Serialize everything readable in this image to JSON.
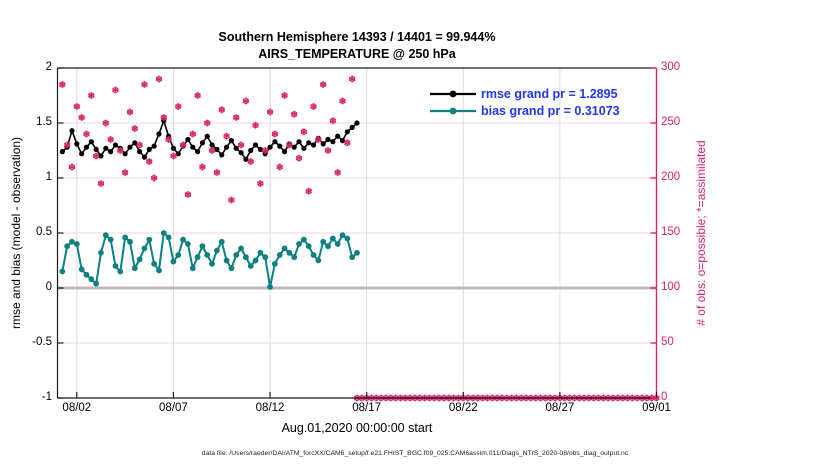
{
  "footer": {
    "data_file": "data file: /Users/raeder/DAI/ATM_forcXX/CAM6_setup/f.e21.FHIST_BGC.f09_025.CAM6assim.011/Diags_NTrS_2020-08/obs_diag_output.nc"
  },
  "chart_data": {
    "type": "line",
    "title": "Southern Hemisphere 14393 / 14401 = 99.944%",
    "subtitle": "AIRS_TEMPERATURE @ 250 hPa",
    "xlabel": "Aug.01,2020 00:00:00 start",
    "ylabel_left": "rmse and bias (model - observation)",
    "ylabel_right": "# of obs: o=possible; *=assimilated",
    "x_axis": {
      "start": "Aug.01,2020 00:00:00",
      "tick_labels": [
        "08/02",
        "08/07",
        "08/12",
        "08/17",
        "08/22",
        "08/27",
        "09/01"
      ],
      "tick_days": [
        1,
        6,
        11,
        16,
        21,
        26,
        31
      ],
      "range_days": [
        0,
        31
      ],
      "grid": true
    },
    "y_left": {
      "tick_labels": [
        "2",
        "1.5",
        "1",
        "0.5",
        "0",
        "-0.5",
        "-1"
      ],
      "values": [
        2,
        1.5,
        1,
        0.5,
        0,
        -0.5,
        -1
      ],
      "range": [
        -1,
        2
      ],
      "grid": true
    },
    "y_right": {
      "tick_labels": [
        "300",
        "250",
        "200",
        "150",
        "100",
        "50",
        "0"
      ],
      "values": [
        300,
        250,
        200,
        150,
        100,
        50,
        0
      ],
      "range": [
        0,
        300
      ],
      "color": "#d9246b"
    },
    "zero_line": {
      "value": 0,
      "color": "#c6b4bc"
    },
    "grid_color_vertical": "#dcdcdc",
    "grid_color_horizontal": "#f5d5dd",
    "legend_position": "top-right-inside",
    "legend_text_color": "#2236f0",
    "legend": [
      {
        "label": "rmse grand pr = 1.2895",
        "color": "#000000"
      },
      {
        "label": "bias grand pr = 0.31073",
        "color": "#0d8080"
      }
    ],
    "series": [
      {
        "name": "rmse",
        "axis": "left",
        "color": "#000000",
        "marker": "dot",
        "line": true,
        "x_start_day": 0.25,
        "x_step_days": 0.25,
        "values": [
          1.24,
          1.28,
          1.43,
          1.31,
          1.22,
          1.28,
          1.33,
          1.26,
          1.2,
          1.27,
          1.24,
          1.3,
          1.27,
          1.22,
          1.28,
          1.32,
          1.24,
          1.19,
          1.26,
          1.29,
          1.4,
          1.52,
          1.38,
          1.27,
          1.22,
          1.29,
          1.35,
          1.28,
          1.24,
          1.32,
          1.38,
          1.3,
          1.26,
          1.21,
          1.28,
          1.34,
          1.27,
          1.23,
          1.17,
          1.25,
          1.3,
          1.26,
          1.22,
          1.28,
          1.33,
          1.29,
          1.24,
          1.31,
          1.28,
          1.33,
          1.27,
          1.32,
          1.3,
          1.36,
          1.31,
          1.35,
          1.33,
          1.38,
          1.34,
          1.42,
          1.46,
          1.5
        ]
      },
      {
        "name": "bias",
        "axis": "left",
        "color": "#0d8080",
        "marker": "dot",
        "line": true,
        "x_start_day": 0.25,
        "x_step_days": 0.25,
        "values": [
          0.15,
          0.38,
          0.42,
          0.4,
          0.17,
          0.12,
          0.08,
          0.04,
          0.32,
          0.48,
          0.44,
          0.2,
          0.15,
          0.46,
          0.42,
          0.18,
          0.26,
          0.36,
          0.44,
          0.22,
          0.16,
          0.5,
          0.46,
          0.24,
          0.3,
          0.44,
          0.4,
          0.18,
          0.28,
          0.38,
          0.3,
          0.22,
          0.34,
          0.42,
          0.25,
          0.18,
          0.3,
          0.36,
          0.28,
          0.2,
          0.25,
          0.32,
          0.28,
          0.01,
          0.22,
          0.3,
          0.36,
          0.32,
          0.28,
          0.4,
          0.44,
          0.38,
          0.3,
          0.25,
          0.42,
          0.38,
          0.45,
          0.4,
          0.48,
          0.45,
          0.28,
          0.32
        ]
      },
      {
        "name": "obs_assimilated",
        "axis": "right",
        "color": "#d9246b",
        "marker": "asterisk-circle",
        "line": false,
        "x_start_day": 0.25,
        "x_step_days": 0.25,
        "values": [
          285,
          230,
          210,
          265,
          255,
          240,
          275,
          220,
          195,
          250,
          235,
          280,
          225,
          205,
          260,
          245,
          230,
          285,
          215,
          200,
          290,
          255,
          235,
          220,
          265,
          230,
          185,
          240,
          275,
          210,
          250,
          225,
          205,
          262,
          238,
          180,
          255,
          230,
          270,
          215,
          248,
          195,
          225,
          260,
          240,
          210,
          275,
          230,
          258,
          218,
          242,
          188,
          265,
          235,
          285,
          225,
          252,
          205,
          270,
          232,
          290
        ]
      },
      {
        "name": "obs_zero_tail",
        "axis": "right",
        "color": "#d9246b",
        "marker": "asterisk-circle",
        "line": false,
        "x_start_day": 15.5,
        "x_step_days": 0.25,
        "values": [
          0,
          0,
          0,
          0,
          0,
          0,
          0,
          0,
          0,
          0,
          0,
          0,
          0,
          0,
          0,
          0,
          0,
          0,
          0,
          0,
          0,
          0,
          0,
          0,
          0,
          0,
          0,
          0,
          0,
          0,
          0,
          0,
          0,
          0,
          0,
          0,
          0,
          0,
          0,
          0,
          0,
          0,
          0,
          0,
          0,
          0,
          0,
          0,
          0,
          0,
          0,
          0,
          0,
          0,
          0,
          0,
          0,
          0,
          0,
          0,
          0,
          0,
          0
        ]
      }
    ]
  }
}
